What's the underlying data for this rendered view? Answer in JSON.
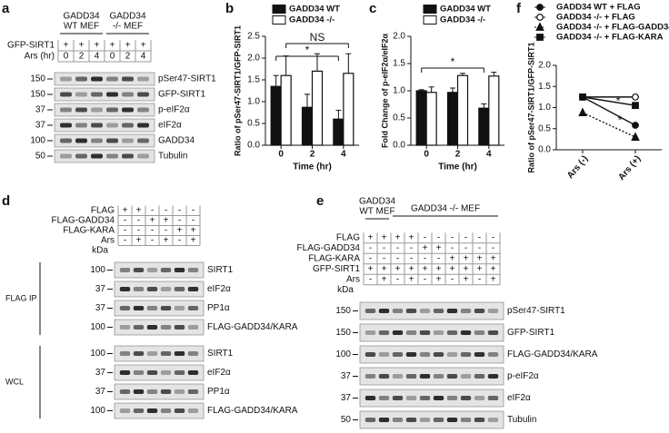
{
  "chart_data": [
    {
      "type": "bar",
      "panel_label": "b",
      "x_label": "Time (hr)",
      "y_label": "Ratio of pSer47-SIRT1/GFP-SIRT1",
      "categories": [
        "0",
        "2",
        "4"
      ],
      "series": [
        {
          "name": "GADD34 WT",
          "color": "#111111",
          "values": [
            1.35,
            0.87,
            0.6
          ],
          "errors": [
            0.25,
            0.3,
            0.2
          ]
        },
        {
          "name": "GADD34  -/-",
          "color": "#ffffff",
          "values": [
            1.6,
            1.7,
            1.65
          ],
          "errors": [
            0.45,
            0.4,
            0.45
          ]
        }
      ],
      "ylim": [
        0,
        2.5
      ],
      "yticks": [
        {
          "value": 0,
          "label": "0.0"
        },
        {
          "value": 0.5,
          "label": "0.5"
        },
        {
          "value": 1,
          "label": "1.0"
        },
        {
          "value": 1.5,
          "label": "1.5"
        },
        {
          "value": 2,
          "label": "2.0"
        },
        {
          "value": 2.5,
          "label": "2.5"
        }
      ],
      "annotations": [
        "NS",
        "*"
      ]
    },
    {
      "type": "bar",
      "panel_label": "c",
      "x_label": "Time (hr)",
      "y_label": "Fold Change of p-eIF2α/eIF2α",
      "categories": [
        "0",
        "2",
        "4"
      ],
      "series": [
        {
          "name": "GADD34 WT",
          "color": "#111111",
          "values": [
            1.0,
            0.97,
            0.68
          ],
          "errors": [
            0.02,
            0.08,
            0.08
          ]
        },
        {
          "name": "GADD34 -/-",
          "color": "#ffffff",
          "values": [
            0.97,
            1.28,
            1.27
          ],
          "errors": [
            0.1,
            0.04,
            0.07
          ]
        }
      ],
      "ylim": [
        0,
        2.0
      ],
      "yticks": [
        {
          "value": 0,
          "label": "0.0"
        },
        {
          "value": 0.5,
          "label": "0.5"
        },
        {
          "value": 1,
          "label": "1.0"
        },
        {
          "value": 1.5,
          "label": "1.5"
        },
        {
          "value": 2,
          "label": "2.0"
        }
      ],
      "annotations": [
        "*"
      ]
    },
    {
      "type": "line",
      "panel_label": "f",
      "y_label": "Ratio of pSer47-SIRT1/GFP-SIRT1",
      "categories": [
        "Ars (-)",
        "Ars (+)"
      ],
      "series": [
        {
          "name": "GADD34 WT + FLAG",
          "color": "#111111",
          "marker": "circle-filled",
          "values": [
            1.25,
            0.58
          ]
        },
        {
          "name": "GADD34 -/-  + FLAG",
          "color": "#111111",
          "marker": "circle-open",
          "values": [
            1.25,
            1.25
          ]
        },
        {
          "name": "GADD34 -/-  + FLAG-GADD34",
          "color": "#111111",
          "marker": "triangle",
          "dotted": true,
          "values": [
            0.88,
            0.3
          ]
        },
        {
          "name": "GADD34 -/-  + FLAG-KARA",
          "color": "#111111",
          "marker": "square",
          "values": [
            1.25,
            1.05
          ]
        }
      ],
      "ylim": [
        0,
        2.0
      ],
      "yticks": [
        {
          "value": 0,
          "label": "0.0"
        },
        {
          "value": 0.5,
          "label": "0.5"
        },
        {
          "value": 1,
          "label": "1.0"
        },
        {
          "value": 1.5,
          "label": "1.5"
        },
        {
          "value": 2,
          "label": "2.0"
        }
      ],
      "annotations": [
        "*",
        "*"
      ]
    }
  ],
  "blots": [
    {
      "panel_label": "a",
      "groups": [
        [
          "GADD34",
          "WT MEF"
        ],
        [
          "GADD34",
          "-/-  MEF"
        ]
      ],
      "rows": [
        {
          "name": "GFP-SIRT1",
          "cells": [
            "+",
            "+",
            "+",
            "+",
            "+",
            "+"
          ]
        },
        {
          "name": "Ars (hr)",
          "cells": [
            "0",
            "2",
            "4",
            "0",
            "2",
            "4"
          ]
        }
      ],
      "sections": [
        {
          "blots": [
            {
              "marker": "150",
              "name": "pSer47-SIRT1"
            },
            {
              "marker": "150",
              "name": "GFP-SIRT1"
            },
            {
              "marker": "37",
              "name": "p-eIF2α"
            },
            {
              "marker": "37",
              "name": "eIF2α"
            },
            {
              "marker": "100",
              "name": "GADD34"
            },
            {
              "marker": "50",
              "name": "Tubulin"
            }
          ]
        }
      ]
    },
    {
      "panel_label": "d",
      "rows": [
        {
          "name": "FLAG",
          "cells": [
            "+",
            "+",
            "-",
            "-",
            "-",
            "-"
          ]
        },
        {
          "name": "FLAG-GADD34",
          "cells": [
            "-",
            "-",
            "+",
            "+",
            "-",
            "-"
          ]
        },
        {
          "name": "FLAG-KARA",
          "cells": [
            "-",
            "-",
            "-",
            "-",
            "+",
            "+"
          ]
        },
        {
          "name": "Ars",
          "cells": [
            "-",
            "+",
            "-",
            "+",
            "-",
            "+"
          ]
        }
      ],
      "unit": "kDa",
      "sections": [
        {
          "name": "FLAG IP",
          "blots": [
            {
              "marker": "100",
              "name": "SIRT1"
            },
            {
              "marker": "37",
              "name": "eIF2α"
            },
            {
              "marker": "37",
              "name": "PP1α"
            },
            {
              "marker": "100",
              "name": "FLAG-GADD34/KARA"
            }
          ]
        },
        {
          "name": "WCL",
          "blots": [
            {
              "marker": "100",
              "name": "SIRT1"
            },
            {
              "marker": "37",
              "name": "eIF2α"
            },
            {
              "marker": "37",
              "name": "PP1α"
            },
            {
              "marker": "100",
              "name": "FLAG-GADD34/KARA"
            }
          ]
        }
      ]
    },
    {
      "panel_label": "e",
      "groups": [
        [
          "GADD34",
          "WT MEF"
        ],
        [
          "GADD34 -/- MEF"
        ]
      ],
      "rows": [
        {
          "name": "FLAG",
          "cells": [
            "+",
            "+",
            "+",
            "+",
            "-",
            "-",
            "-",
            "-",
            "-",
            "-"
          ]
        },
        {
          "name": "FLAG-GADD34",
          "cells": [
            "-",
            "-",
            "-",
            "-",
            "+",
            "+",
            "-",
            "-",
            "-",
            "-"
          ]
        },
        {
          "name": "FLAG-KARA",
          "cells": [
            "-",
            "-",
            "-",
            "-",
            "-",
            "-",
            "+",
            "+",
            "+",
            "+"
          ]
        },
        {
          "name": "GFP-SIRT1",
          "cells": [
            "+",
            "+",
            "+",
            "+",
            "+",
            "+",
            "+",
            "+",
            "+",
            "+"
          ]
        },
        {
          "name": "Ars",
          "cells": [
            "-",
            "+",
            "-",
            "+",
            "-",
            "+",
            "-",
            "+",
            "-",
            "+"
          ]
        }
      ],
      "unit": "kDa",
      "sections": [
        {
          "blots": [
            {
              "marker": "150",
              "name": "pSer47-SIRT1"
            },
            {
              "marker": "150",
              "name": "GFP-SIRT1"
            },
            {
              "marker": "100",
              "name": "FLAG-GADD34/KARA"
            },
            {
              "marker": "37",
              "name": "p-eIF2α"
            },
            {
              "marker": "37",
              "name": "eIF2α"
            },
            {
              "marker": "50",
              "name": "Tubulin"
            }
          ]
        }
      ]
    }
  ]
}
